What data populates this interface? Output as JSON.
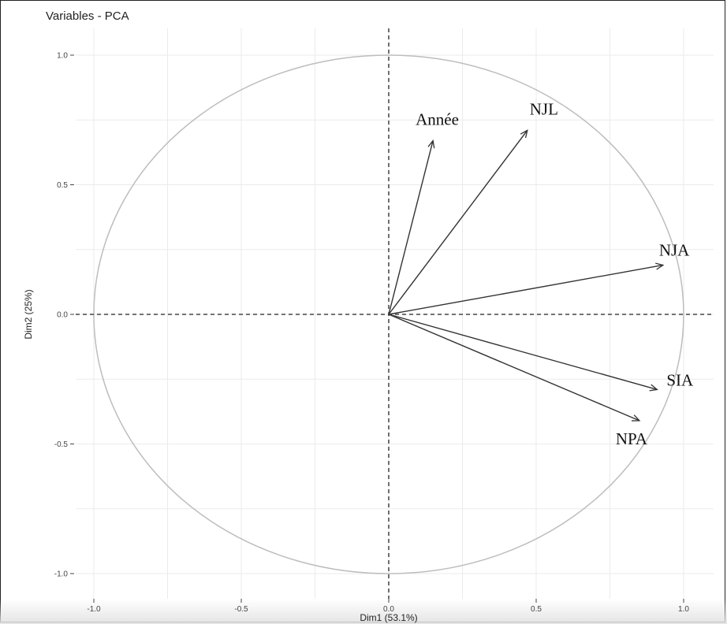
{
  "chart_data": {
    "type": "scatter",
    "title": "Variables - PCA",
    "xlabel": "Dim1 (53.1%)",
    "ylabel": "Dim2 (25%)",
    "xlim": [
      -1.0,
      1.0
    ],
    "ylim": [
      -1.0,
      1.0
    ],
    "grid": true,
    "x_ticks": [
      "-1.0",
      "-0.5",
      "0.0",
      "0.5",
      "1.0"
    ],
    "y_ticks": [
      "1.0",
      "0.5",
      "0.0",
      "-0.5",
      "-1.0"
    ],
    "correlation_circle": true,
    "variables": [
      {
        "name": "Année",
        "x": 0.15,
        "y": 0.67
      },
      {
        "name": "NJL",
        "x": 0.47,
        "y": 0.71
      },
      {
        "name": "NJA",
        "x": 0.93,
        "y": 0.19
      },
      {
        "name": "SIA",
        "x": 0.91,
        "y": -0.29
      },
      {
        "name": "NPA",
        "x": 0.85,
        "y": -0.41
      }
    ]
  },
  "colors": {
    "arrow": "#333333",
    "circle": "#bdbdbd",
    "grid": "#ebebeb",
    "axis_dashed": "#222222"
  }
}
